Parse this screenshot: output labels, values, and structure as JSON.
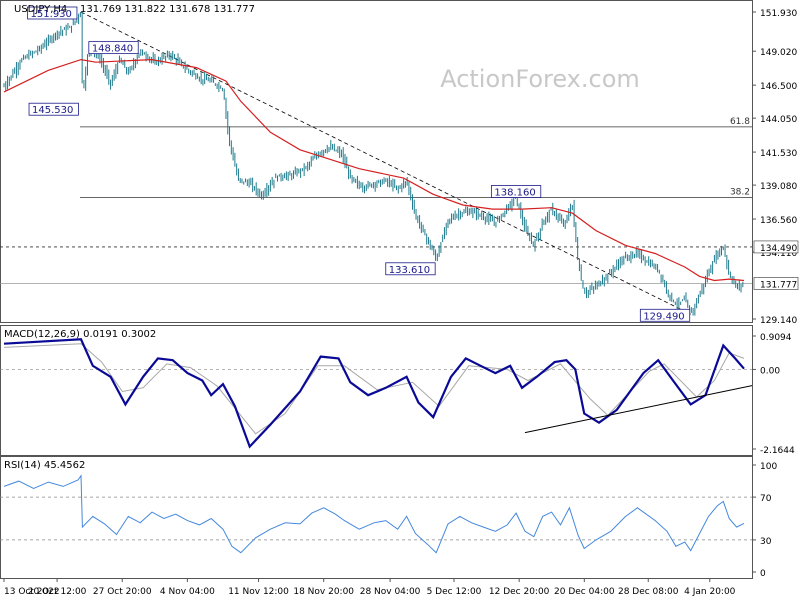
{
  "chart_data": [
    {
      "type": "candlestick",
      "title": "USDJPY,H4",
      "ohlc_label": "131.769 131.822 131.678 131.777",
      "ylim": [
        129.14,
        151.93
      ],
      "yticks": [
        "151.930",
        "149.020",
        "146.500",
        "144.050",
        "141.530",
        "139.080",
        "136.560",
        "134.110",
        "129.140"
      ],
      "last_price": "131.777",
      "level_label": "134.490",
      "level_value": 134.49,
      "fib_lines": [
        {
          "label": "61.8",
          "value": 143.4
        },
        {
          "label": "38.2",
          "value": 138.16
        }
      ],
      "price_path": [
        {
          "t": 0,
          "v": 146.4
        },
        {
          "t": 12,
          "v": 148.4
        },
        {
          "t": 24,
          "v": 149.2
        },
        {
          "t": 36,
          "v": 150.4
        },
        {
          "t": 45,
          "v": 150.8
        },
        {
          "t": 52,
          "v": 151.93
        },
        {
          "t": 53,
          "v": 145.53
        },
        {
          "t": 57,
          "v": 149.2
        },
        {
          "t": 64,
          "v": 148.6
        },
        {
          "t": 72,
          "v": 146.6
        },
        {
          "t": 78,
          "v": 148.4
        },
        {
          "t": 84,
          "v": 147.4
        },
        {
          "t": 92,
          "v": 149.0
        },
        {
          "t": 102,
          "v": 148.2
        },
        {
          "t": 112,
          "v": 148.8
        },
        {
          "t": 122,
          "v": 147.8
        },
        {
          "t": 132,
          "v": 147.0
        },
        {
          "t": 140,
          "v": 146.8
        },
        {
          "t": 148,
          "v": 146.2
        },
        {
          "t": 152,
          "v": 142.5
        },
        {
          "t": 158,
          "v": 139.5
        },
        {
          "t": 166,
          "v": 139.2
        },
        {
          "t": 174,
          "v": 138.3
        },
        {
          "t": 184,
          "v": 139.7
        },
        {
          "t": 194,
          "v": 139.8
        },
        {
          "t": 204,
          "v": 140.4
        },
        {
          "t": 212,
          "v": 141.4
        },
        {
          "t": 220,
          "v": 141.9
        },
        {
          "t": 228,
          "v": 141.4
        },
        {
          "t": 234,
          "v": 139.6
        },
        {
          "t": 242,
          "v": 138.9
        },
        {
          "t": 250,
          "v": 139.2
        },
        {
          "t": 258,
          "v": 139.4
        },
        {
          "t": 266,
          "v": 138.8
        },
        {
          "t": 272,
          "v": 139.4
        },
        {
          "t": 278,
          "v": 136.8
        },
        {
          "t": 286,
          "v": 135.0
        },
        {
          "t": 292,
          "v": 133.61
        },
        {
          "t": 300,
          "v": 136.5
        },
        {
          "t": 308,
          "v": 137.0
        },
        {
          "t": 316,
          "v": 137.1
        },
        {
          "t": 324,
          "v": 136.7
        },
        {
          "t": 332,
          "v": 136.3
        },
        {
          "t": 340,
          "v": 137.4
        },
        {
          "t": 346,
          "v": 138.16
        },
        {
          "t": 352,
          "v": 135.8
        },
        {
          "t": 358,
          "v": 134.6
        },
        {
          "t": 364,
          "v": 136.3
        },
        {
          "t": 370,
          "v": 137.3
        },
        {
          "t": 378,
          "v": 136.1
        },
        {
          "t": 384,
          "v": 137.6
        },
        {
          "t": 388,
          "v": 133.2
        },
        {
          "t": 392,
          "v": 131.0
        },
        {
          "t": 400,
          "v": 131.6
        },
        {
          "t": 408,
          "v": 132.4
        },
        {
          "t": 418,
          "v": 133.6
        },
        {
          "t": 428,
          "v": 134.0
        },
        {
          "t": 434,
          "v": 133.4
        },
        {
          "t": 442,
          "v": 132.8
        },
        {
          "t": 448,
          "v": 131.2
        },
        {
          "t": 454,
          "v": 130.2
        },
        {
          "t": 460,
          "v": 130.6
        },
        {
          "t": 464,
          "v": 129.49
        },
        {
          "t": 470,
          "v": 131.0
        },
        {
          "t": 476,
          "v": 132.6
        },
        {
          "t": 482,
          "v": 134.0
        },
        {
          "t": 486,
          "v": 134.49
        },
        {
          "t": 490,
          "v": 132.4
        },
        {
          "t": 495,
          "v": 131.5
        },
        {
          "t": 500,
          "v": 131.777
        }
      ],
      "ma_path": [
        {
          "t": 0,
          "v": 146.0
        },
        {
          "t": 30,
          "v": 147.6
        },
        {
          "t": 52,
          "v": 148.4
        },
        {
          "t": 62,
          "v": 148.2
        },
        {
          "t": 100,
          "v": 148.4
        },
        {
          "t": 130,
          "v": 147.8
        },
        {
          "t": 150,
          "v": 146.8
        },
        {
          "t": 160,
          "v": 145.3
        },
        {
          "t": 180,
          "v": 143.0
        },
        {
          "t": 200,
          "v": 141.7
        },
        {
          "t": 220,
          "v": 141.0
        },
        {
          "t": 240,
          "v": 140.3
        },
        {
          "t": 270,
          "v": 139.6
        },
        {
          "t": 290,
          "v": 138.4
        },
        {
          "t": 310,
          "v": 137.6
        },
        {
          "t": 330,
          "v": 137.3
        },
        {
          "t": 350,
          "v": 137.3
        },
        {
          "t": 370,
          "v": 137.4
        },
        {
          "t": 384,
          "v": 137.0
        },
        {
          "t": 400,
          "v": 135.7
        },
        {
          "t": 420,
          "v": 134.6
        },
        {
          "t": 440,
          "v": 134.0
        },
        {
          "t": 460,
          "v": 133.0
        },
        {
          "t": 470,
          "v": 132.3
        },
        {
          "t": 480,
          "v": 132.0
        },
        {
          "t": 490,
          "v": 132.1
        },
        {
          "t": 500,
          "v": 132.0
        }
      ],
      "annotations": [
        {
          "label": "151.930",
          "t": 52,
          "v": 151.93,
          "pos": "left"
        },
        {
          "label": "145.530",
          "t": 53,
          "v": 145.53,
          "pos": "left"
        },
        {
          "label": "148.840",
          "t": 74,
          "v": 148.84,
          "pos": "above"
        },
        {
          "label": "133.610",
          "t": 292,
          "v": 133.61,
          "pos": "left"
        },
        {
          "label": "138.160",
          "t": 346,
          "v": 138.16,
          "pos": "above"
        },
        {
          "label": "129.490",
          "t": 464,
          "v": 129.49,
          "pos": "left"
        }
      ],
      "colors": {
        "price": "#1e7a8c",
        "ma": "#d62020",
        "trend": "#000000"
      }
    },
    {
      "type": "line",
      "title": "MACD(12,26,9) 0.0191 0.3002",
      "ylim": [
        -2.1644,
        0.9094
      ],
      "yticks": [
        "0.9094",
        "0.00",
        "-2.1644"
      ],
      "series": [
        {
          "values": [
            {
              "t": 0,
              "v": 0.7
            },
            {
              "t": 52,
              "v": 0.82
            },
            {
              "t": 60,
              "v": 0.1
            },
            {
              "t": 72,
              "v": -0.2
            },
            {
              "t": 82,
              "v": -0.95
            },
            {
              "t": 94,
              "v": -0.2
            },
            {
              "t": 104,
              "v": 0.3
            },
            {
              "t": 114,
              "v": 0.25
            },
            {
              "t": 124,
              "v": -0.1
            },
            {
              "t": 134,
              "v": -0.3
            },
            {
              "t": 140,
              "v": -0.7
            },
            {
              "t": 148,
              "v": -0.4
            },
            {
              "t": 156,
              "v": -1.0
            },
            {
              "t": 166,
              "v": -2.1
            },
            {
              "t": 180,
              "v": -1.5
            },
            {
              "t": 200,
              "v": -0.6
            },
            {
              "t": 214,
              "v": 0.35
            },
            {
              "t": 226,
              "v": 0.3
            },
            {
              "t": 234,
              "v": -0.35
            },
            {
              "t": 246,
              "v": -0.7
            },
            {
              "t": 258,
              "v": -0.5
            },
            {
              "t": 272,
              "v": -0.2
            },
            {
              "t": 280,
              "v": -0.9
            },
            {
              "t": 290,
              "v": -1.3
            },
            {
              "t": 302,
              "v": -0.2
            },
            {
              "t": 312,
              "v": 0.3
            },
            {
              "t": 322,
              "v": 0.1
            },
            {
              "t": 332,
              "v": -0.1
            },
            {
              "t": 342,
              "v": 0.1
            },
            {
              "t": 350,
              "v": -0.5
            },
            {
              "t": 360,
              "v": -0.2
            },
            {
              "t": 372,
              "v": 0.2
            },
            {
              "t": 380,
              "v": 0.25
            },
            {
              "t": 386,
              "v": 0.0
            },
            {
              "t": 392,
              "v": -1.2
            },
            {
              "t": 402,
              "v": -1.45
            },
            {
              "t": 414,
              "v": -1.1
            },
            {
              "t": 432,
              "v": -0.1
            },
            {
              "t": 442,
              "v": 0.25
            },
            {
              "t": 452,
              "v": -0.3
            },
            {
              "t": 464,
              "v": -0.95
            },
            {
              "t": 474,
              "v": -0.7
            },
            {
              "t": 486,
              "v": 0.65
            },
            {
              "t": 494,
              "v": 0.3
            },
            {
              "t": 500,
              "v": 0.02
            }
          ]
        },
        {
          "values": [
            {
              "t": 0,
              "v": 0.6
            },
            {
              "t": 52,
              "v": 0.7
            },
            {
              "t": 66,
              "v": 0.2
            },
            {
              "t": 80,
              "v": -0.6
            },
            {
              "t": 94,
              "v": -0.5
            },
            {
              "t": 110,
              "v": 0.15
            },
            {
              "t": 126,
              "v": 0.05
            },
            {
              "t": 144,
              "v": -0.45
            },
            {
              "t": 170,
              "v": -1.75
            },
            {
              "t": 190,
              "v": -1.2
            },
            {
              "t": 212,
              "v": 0.1
            },
            {
              "t": 230,
              "v": 0.1
            },
            {
              "t": 252,
              "v": -0.55
            },
            {
              "t": 276,
              "v": -0.35
            },
            {
              "t": 294,
              "v": -1.0
            },
            {
              "t": 314,
              "v": 0.1
            },
            {
              "t": 340,
              "v": 0.0
            },
            {
              "t": 354,
              "v": -0.3
            },
            {
              "t": 376,
              "v": 0.15
            },
            {
              "t": 396,
              "v": -0.8
            },
            {
              "t": 408,
              "v": -1.25
            },
            {
              "t": 436,
              "v": -0.05
            },
            {
              "t": 446,
              "v": 0.15
            },
            {
              "t": 468,
              "v": -0.75
            },
            {
              "t": 480,
              "v": -0.3
            },
            {
              "t": 490,
              "v": 0.45
            },
            {
              "t": 500,
              "v": 0.3
            }
          ]
        }
      ],
      "trendline": [
        {
          "t": 352,
          "v": -1.72
        },
        {
          "t": 500,
          "v": -0.55
        }
      ],
      "colors": {
        "macd": "#0a0a96",
        "signal": "#a8a8a8",
        "trend": "#000000"
      }
    },
    {
      "type": "line",
      "title": "RSI(14) 45.4562",
      "ylim": [
        0,
        100
      ],
      "yticks": [
        "100",
        "70",
        "30",
        "0"
      ],
      "levels": [
        70,
        30
      ],
      "series": [
        {
          "values": [
            {
              "t": 0,
              "v": 80
            },
            {
              "t": 10,
              "v": 85
            },
            {
              "t": 20,
              "v": 78
            },
            {
              "t": 30,
              "v": 84
            },
            {
              "t": 40,
              "v": 80
            },
            {
              "t": 50,
              "v": 86
            },
            {
              "t": 52,
              "v": 90
            },
            {
              "t": 53,
              "v": 42
            },
            {
              "t": 60,
              "v": 52
            },
            {
              "t": 68,
              "v": 45
            },
            {
              "t": 76,
              "v": 35
            },
            {
              "t": 84,
              "v": 52
            },
            {
              "t": 92,
              "v": 46
            },
            {
              "t": 100,
              "v": 56
            },
            {
              "t": 108,
              "v": 50
            },
            {
              "t": 116,
              "v": 54
            },
            {
              "t": 124,
              "v": 48
            },
            {
              "t": 132,
              "v": 44
            },
            {
              "t": 140,
              "v": 50
            },
            {
              "t": 148,
              "v": 40
            },
            {
              "t": 154,
              "v": 24
            },
            {
              "t": 160,
              "v": 18
            },
            {
              "t": 170,
              "v": 32
            },
            {
              "t": 180,
              "v": 40
            },
            {
              "t": 190,
              "v": 46
            },
            {
              "t": 200,
              "v": 45
            },
            {
              "t": 208,
              "v": 55
            },
            {
              "t": 216,
              "v": 60
            },
            {
              "t": 224,
              "v": 54
            },
            {
              "t": 230,
              "v": 48
            },
            {
              "t": 240,
              "v": 40
            },
            {
              "t": 250,
              "v": 46
            },
            {
              "t": 258,
              "v": 48
            },
            {
              "t": 266,
              "v": 40
            },
            {
              "t": 272,
              "v": 52
            },
            {
              "t": 278,
              "v": 36
            },
            {
              "t": 286,
              "v": 26
            },
            {
              "t": 292,
              "v": 18
            },
            {
              "t": 300,
              "v": 45
            },
            {
              "t": 308,
              "v": 52
            },
            {
              "t": 316,
              "v": 46
            },
            {
              "t": 324,
              "v": 42
            },
            {
              "t": 332,
              "v": 38
            },
            {
              "t": 340,
              "v": 44
            },
            {
              "t": 346,
              "v": 55
            },
            {
              "t": 352,
              "v": 38
            },
            {
              "t": 358,
              "v": 33
            },
            {
              "t": 364,
              "v": 52
            },
            {
              "t": 370,
              "v": 56
            },
            {
              "t": 376,
              "v": 44
            },
            {
              "t": 382,
              "v": 60
            },
            {
              "t": 388,
              "v": 34
            },
            {
              "t": 392,
              "v": 22
            },
            {
              "t": 400,
              "v": 30
            },
            {
              "t": 410,
              "v": 38
            },
            {
              "t": 420,
              "v": 52
            },
            {
              "t": 428,
              "v": 60
            },
            {
              "t": 434,
              "v": 54
            },
            {
              "t": 440,
              "v": 48
            },
            {
              "t": 448,
              "v": 38
            },
            {
              "t": 454,
              "v": 24
            },
            {
              "t": 460,
              "v": 28
            },
            {
              "t": 464,
              "v": 20
            },
            {
              "t": 470,
              "v": 36
            },
            {
              "t": 476,
              "v": 52
            },
            {
              "t": 482,
              "v": 62
            },
            {
              "t": 486,
              "v": 66
            },
            {
              "t": 490,
              "v": 50
            },
            {
              "t": 495,
              "v": 42
            },
            {
              "t": 500,
              "v": 45.4562
            }
          ]
        }
      ],
      "colors": {
        "rsi": "#4488dd",
        "levels": "#888888"
      }
    }
  ],
  "x_axis": {
    "labels": [
      "13 Oct 2022",
      "20 Oct 12:00",
      "27 Oct 20:00",
      "4 Nov 04:00",
      "11 Nov 12:00",
      "18 Nov 20:00",
      "28 Nov 04:00",
      "5 Dec 12:00",
      "12 Dec 20:00",
      "20 Dec 04:00",
      "28 Dec 08:00",
      "4 Jan 20:00"
    ],
    "label_t": [
      0,
      44,
      98,
      152,
      211,
      265,
      320,
      373,
      427,
      481,
      534,
      585
    ],
    "t_max": 620
  },
  "watermark": "ActionForex.com"
}
